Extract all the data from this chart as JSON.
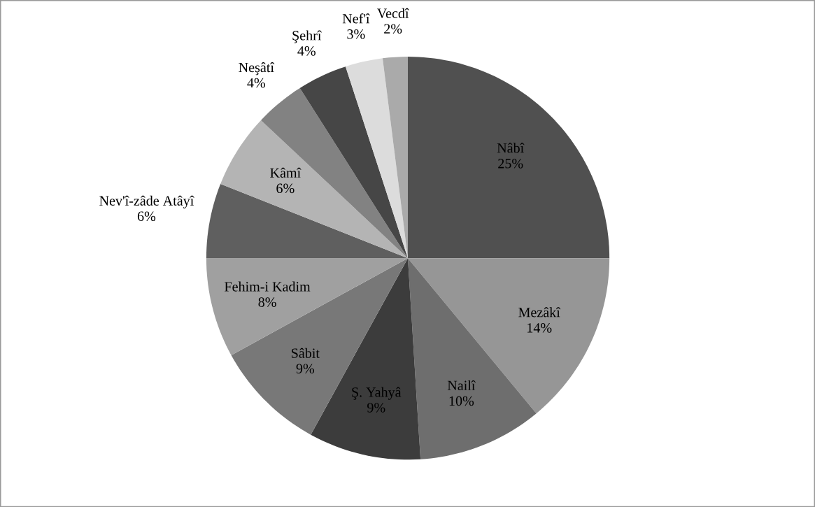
{
  "chart_data": {
    "type": "pie",
    "categories": [
      "Nâbî",
      "Mezâkî",
      "Nailî",
      "Ş. Yahyâ",
      "Sâbit",
      "Fehim-i Kadim",
      "Nev'î-zâde Atâyî",
      "Kâmî",
      "Neşâtî",
      "Şehrî",
      "Nef'î",
      "Vecdî"
    ],
    "values": [
      25,
      14,
      10,
      9,
      9,
      8,
      6,
      6,
      4,
      4,
      3,
      2
    ],
    "value_labels": [
      "25%",
      "14%",
      "10%",
      "9%",
      "9%",
      "8%",
      "6%",
      "6%",
      "4%",
      "4%",
      "3%",
      "2%"
    ],
    "colors": [
      "#505050",
      "#969696",
      "#6e6e6e",
      "#3c3c3c",
      "#787878",
      "#a0a0a0",
      "#5f5f5f",
      "#b4b4b4",
      "#828282",
      "#464646",
      "#dcdcdc",
      "#aaaaaa"
    ]
  }
}
